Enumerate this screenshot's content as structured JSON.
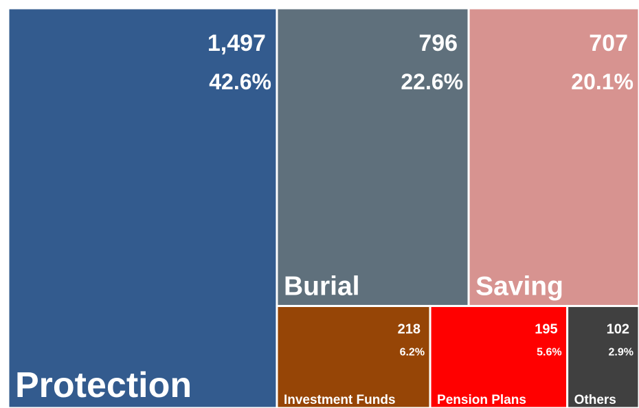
{
  "chart_data": {
    "type": "treemap",
    "categories": [
      "Protection",
      "Burial",
      "Saving",
      "Investment Funds",
      "Pension Plans",
      "Others"
    ],
    "values": [
      1497,
      796,
      707,
      218,
      195,
      102
    ],
    "value_labels": [
      "1,497",
      "796",
      "707",
      "218",
      "195",
      "102"
    ],
    "shares": [
      42.6,
      22.6,
      20.1,
      6.2,
      5.6,
      2.9
    ],
    "share_labels": [
      "42.6%",
      "22.6%",
      "20.1%",
      "6.2%",
      "5.6%",
      "2.9%"
    ],
    "colors": [
      "#335b8e",
      "#5f707c",
      "#d79390",
      "#964506",
      "#ff0000",
      "#404040"
    ]
  }
}
